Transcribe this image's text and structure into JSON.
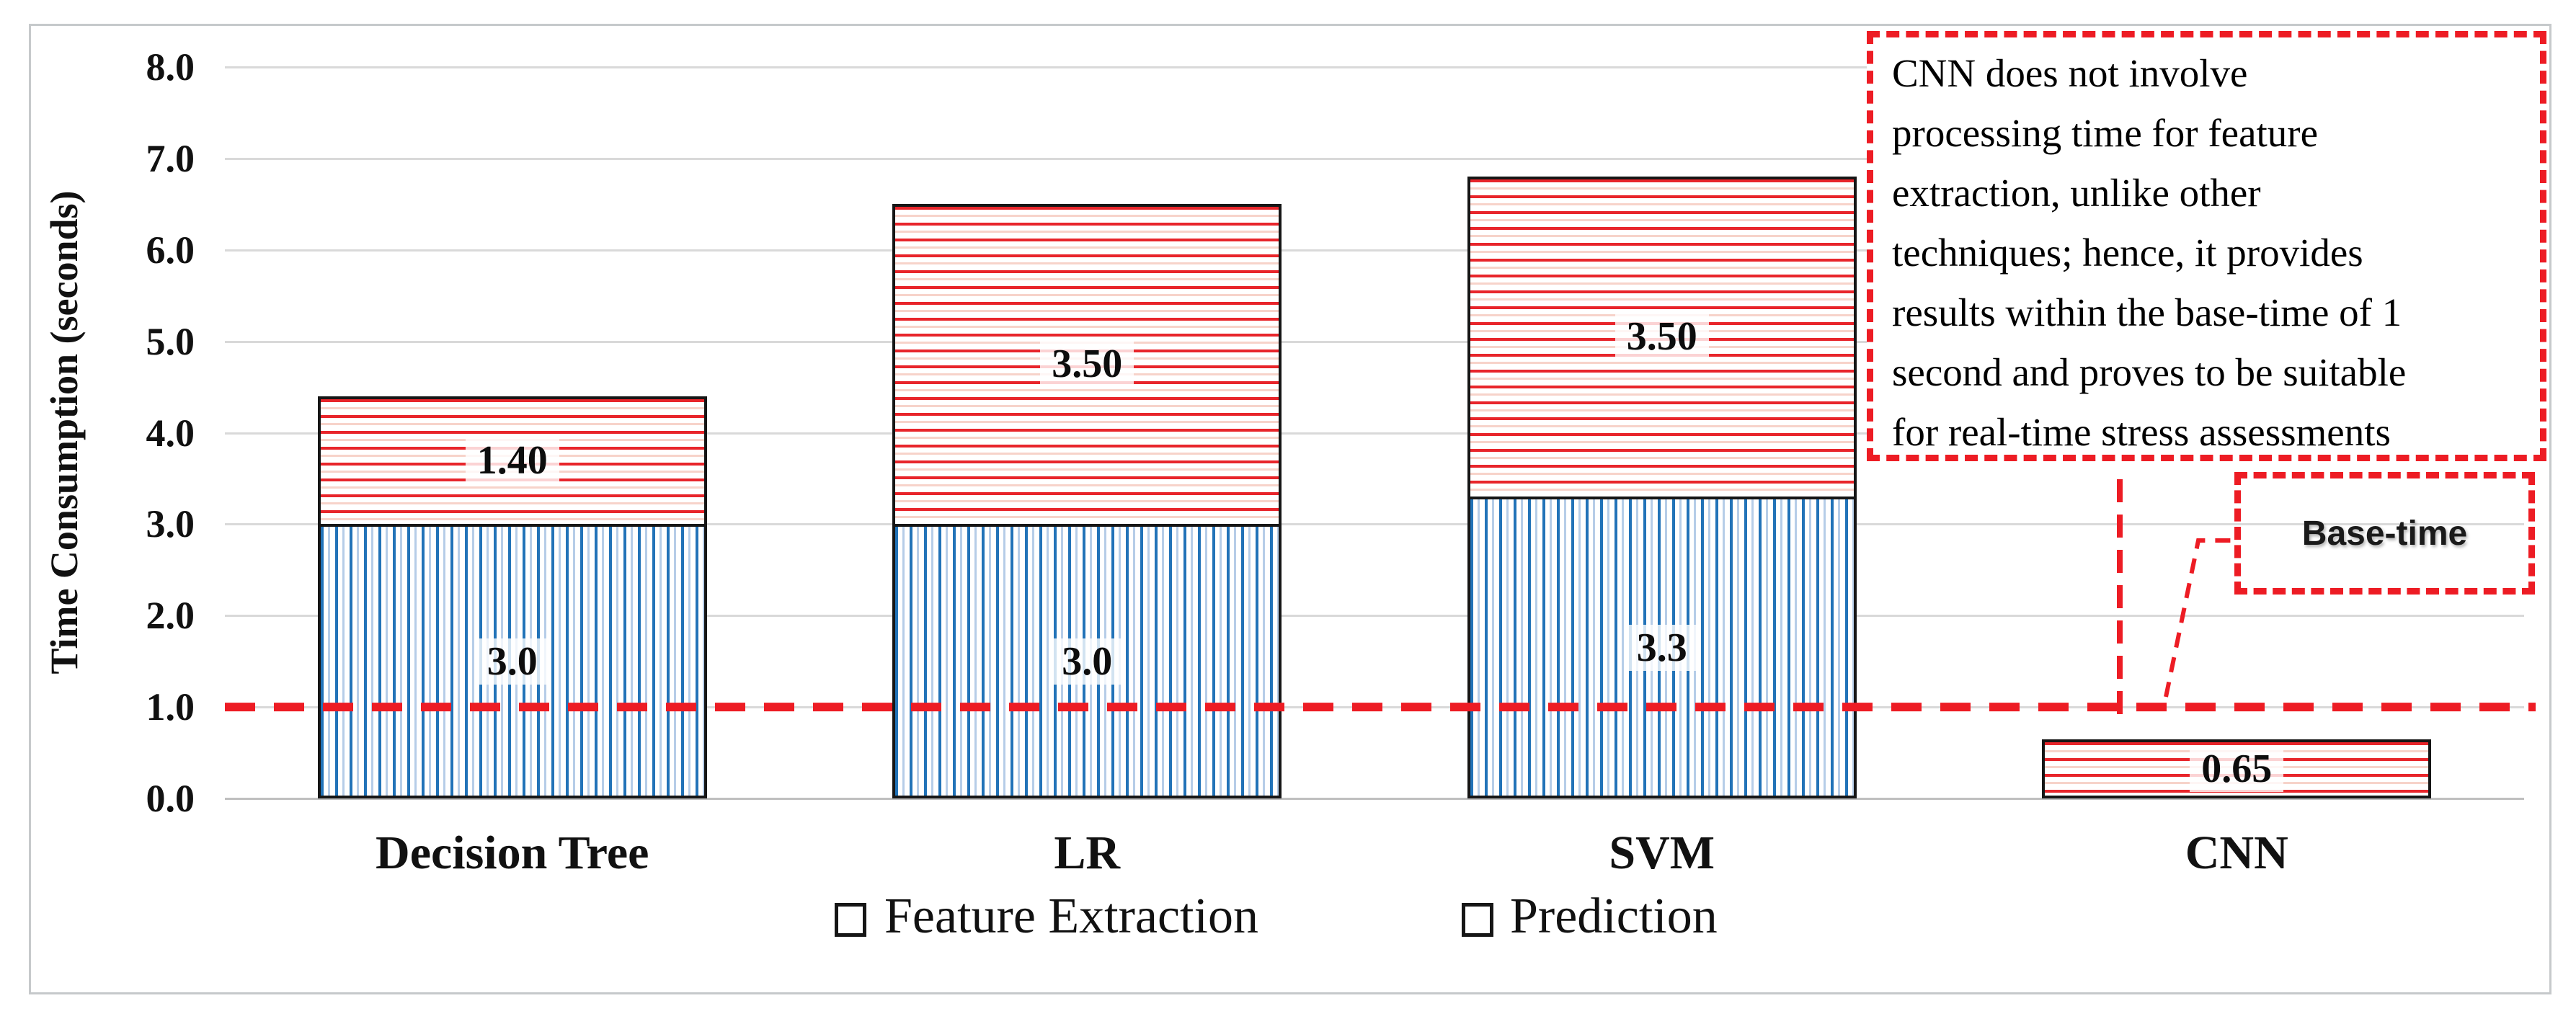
{
  "window": {
    "background": "#ffffff",
    "frame_border_color": "#c6c9cb"
  },
  "chart_data": {
    "type": "bar",
    "stacked": true,
    "title": "",
    "categories": [
      "Decision Tree",
      "LR",
      "SVM",
      "CNN"
    ],
    "series": [
      {
        "name": "Feature Extraction",
        "values": [
          3.0,
          3.0,
          3.3,
          0
        ],
        "labels": [
          "3.0",
          "3.0",
          "3.3",
          ""
        ],
        "pattern": "vertical-stripes",
        "stripe_color": "#2273b8"
      },
      {
        "name": "Prediction",
        "values": [
          1.4,
          3.5,
          3.5,
          0.65
        ],
        "labels": [
          "1.40",
          "3.50",
          "3.50",
          "0.65"
        ],
        "pattern": "horizontal-stripes",
        "stripe_color": "#e8252b"
      }
    ],
    "totals": [
      4.4,
      6.5,
      6.8,
      0.65
    ],
    "ylabel": "Time Consumption (seconds)",
    "xlabel": "",
    "ylim": [
      0,
      8
    ],
    "ytick_labels": [
      "0.0",
      "1.0",
      "2.0",
      "3.0",
      "4.0",
      "5.0",
      "6.0",
      "7.0",
      "8.0"
    ],
    "grid": true,
    "legend_position": "bottom-center",
    "reference_line": {
      "value": 1.0,
      "label": "Base-time",
      "color": "#ed1c24",
      "style": "dashed"
    }
  },
  "annotation_box": {
    "text": "CNN does not involve\nprocessing time for feature\nextraction, unlike other\ntechniques; hence, it provides\nresults within the base-time of 1\nsecond and proves to be suitable\nfor real-time stress assessments",
    "border_color": "#ed1c24"
  },
  "base_time_callout": {
    "label": "Base-time",
    "border_color": "#ed1c24"
  },
  "colors": {
    "grid": "#d9d9d9",
    "axis": "#bfbfbf",
    "bar_border": "#161616",
    "blue_stripe": "#2273b8",
    "blue_stripe_light": "#b6cde8",
    "red_stripe": "#e8252b",
    "red_stripe_light": "#f7d3ca",
    "dash_red": "#ed1c24",
    "label_background": "rgba(255,255,255,0.8)",
    "text": "#111111"
  }
}
